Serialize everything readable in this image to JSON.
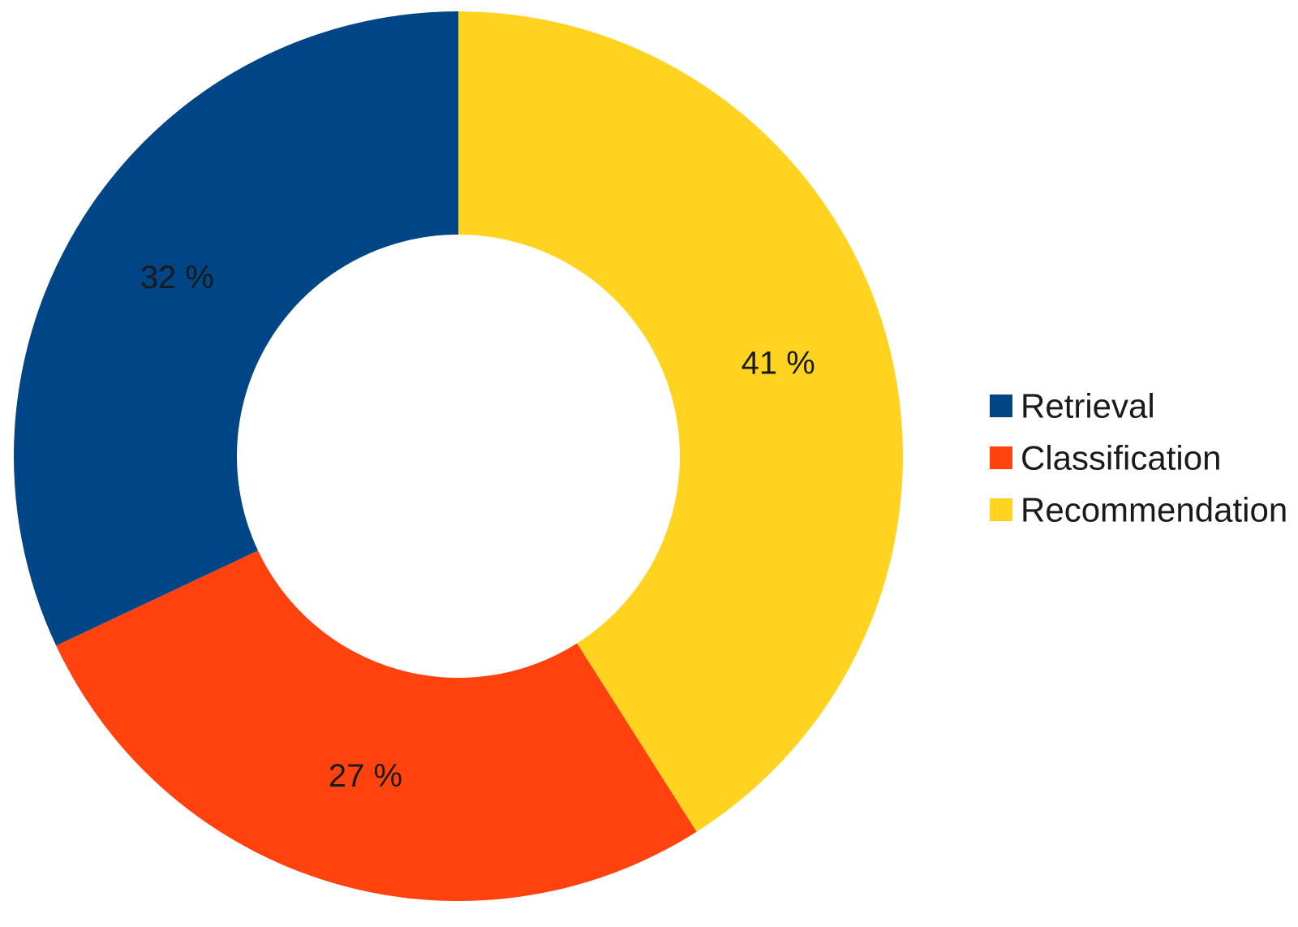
{
  "chart_data": {
    "type": "pie",
    "donut": true,
    "title": "",
    "legend_position": "right",
    "slices": [
      {
        "label": "Retrieval",
        "value": 32,
        "value_label": "32 %",
        "color": "#004586"
      },
      {
        "label": "Classification",
        "value": 27,
        "value_label": "27 %",
        "color": "#ff420e"
      },
      {
        "label": "Recommendation",
        "value": 41,
        "value_label": "41 %",
        "color": "#ffd320"
      }
    ]
  }
}
